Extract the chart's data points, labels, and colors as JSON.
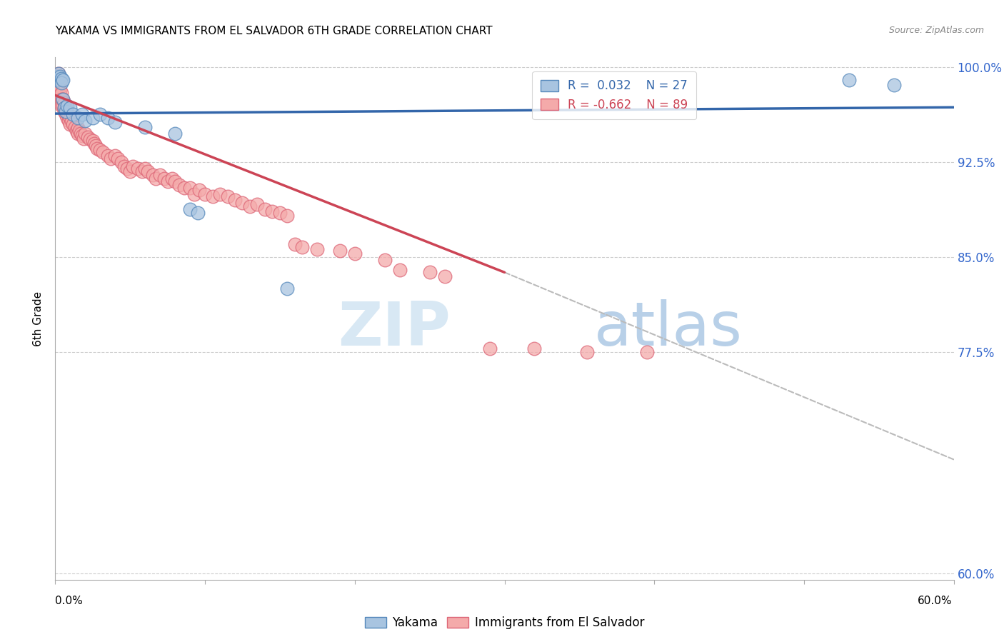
{
  "title": "YAKAMA VS IMMIGRANTS FROM EL SALVADOR 6TH GRADE CORRELATION CHART",
  "source": "Source: ZipAtlas.com",
  "ylabel": "6th Grade",
  "xmin": 0.0,
  "xmax": 0.6,
  "ymin": 0.595,
  "ymax": 1.008,
  "blue_color": "#A8C4E0",
  "blue_edge_color": "#5588BB",
  "pink_color": "#F4AAAA",
  "pink_edge_color": "#DD6677",
  "blue_line_color": "#3366AA",
  "pink_line_color": "#CC4455",
  "dashed_line_color": "#BBBBBB",
  "right_tick_color": "#3366CC",
  "ytick_positions": [
    0.6,
    0.775,
    0.85,
    0.925,
    1.0
  ],
  "ytick_labels": [
    "60.0%",
    "77.5%",
    "85.0%",
    "92.5%",
    "100.0%"
  ],
  "xtick_positions": [
    0.0,
    0.1,
    0.2,
    0.3,
    0.4,
    0.5,
    0.6
  ],
  "yakama_points": [
    [
      0.001,
      0.993
    ],
    [
      0.001,
      0.99
    ],
    [
      0.002,
      0.995
    ],
    [
      0.003,
      0.993
    ],
    [
      0.004,
      0.991
    ],
    [
      0.004,
      0.988
    ],
    [
      0.005,
      0.99
    ],
    [
      0.005,
      0.975
    ],
    [
      0.006,
      0.968
    ],
    [
      0.007,
      0.965
    ],
    [
      0.008,
      0.97
    ],
    [
      0.01,
      0.968
    ],
    [
      0.012,
      0.963
    ],
    [
      0.015,
      0.96
    ],
    [
      0.018,
      0.963
    ],
    [
      0.02,
      0.958
    ],
    [
      0.025,
      0.96
    ],
    [
      0.03,
      0.963
    ],
    [
      0.035,
      0.96
    ],
    [
      0.04,
      0.957
    ],
    [
      0.06,
      0.953
    ],
    [
      0.08,
      0.948
    ],
    [
      0.09,
      0.888
    ],
    [
      0.095,
      0.885
    ],
    [
      0.155,
      0.825
    ],
    [
      0.53,
      0.99
    ],
    [
      0.56,
      0.986
    ]
  ],
  "salvador_points": [
    [
      0.001,
      0.993
    ],
    [
      0.001,
      0.988
    ],
    [
      0.002,
      0.995
    ],
    [
      0.002,
      0.99
    ],
    [
      0.002,
      0.985
    ],
    [
      0.003,
      0.988
    ],
    [
      0.003,
      0.982
    ],
    [
      0.003,
      0.978
    ],
    [
      0.004,
      0.98
    ],
    [
      0.004,
      0.975
    ],
    [
      0.004,
      0.97
    ],
    [
      0.005,
      0.975
    ],
    [
      0.005,
      0.97
    ],
    [
      0.006,
      0.972
    ],
    [
      0.006,
      0.968
    ],
    [
      0.006,
      0.965
    ],
    [
      0.007,
      0.968
    ],
    [
      0.007,
      0.963
    ],
    [
      0.008,
      0.965
    ],
    [
      0.008,
      0.96
    ],
    [
      0.009,
      0.962
    ],
    [
      0.009,
      0.958
    ],
    [
      0.01,
      0.96
    ],
    [
      0.01,
      0.955
    ],
    [
      0.011,
      0.958
    ],
    [
      0.012,
      0.955
    ],
    [
      0.013,
      0.953
    ],
    [
      0.014,
      0.95
    ],
    [
      0.015,
      0.952
    ],
    [
      0.015,
      0.948
    ],
    [
      0.016,
      0.95
    ],
    [
      0.017,
      0.948
    ],
    [
      0.018,
      0.946
    ],
    [
      0.019,
      0.944
    ],
    [
      0.02,
      0.948
    ],
    [
      0.022,
      0.945
    ],
    [
      0.023,
      0.943
    ],
    [
      0.025,
      0.942
    ],
    [
      0.026,
      0.94
    ],
    [
      0.027,
      0.938
    ],
    [
      0.028,
      0.936
    ],
    [
      0.03,
      0.935
    ],
    [
      0.032,
      0.933
    ],
    [
      0.035,
      0.93
    ],
    [
      0.037,
      0.928
    ],
    [
      0.04,
      0.93
    ],
    [
      0.042,
      0.928
    ],
    [
      0.044,
      0.925
    ],
    [
      0.046,
      0.922
    ],
    [
      0.048,
      0.92
    ],
    [
      0.05,
      0.918
    ],
    [
      0.052,
      0.922
    ],
    [
      0.055,
      0.92
    ],
    [
      0.058,
      0.918
    ],
    [
      0.06,
      0.92
    ],
    [
      0.062,
      0.918
    ],
    [
      0.065,
      0.915
    ],
    [
      0.067,
      0.912
    ],
    [
      0.07,
      0.915
    ],
    [
      0.073,
      0.912
    ],
    [
      0.075,
      0.91
    ],
    [
      0.078,
      0.912
    ],
    [
      0.08,
      0.91
    ],
    [
      0.083,
      0.907
    ],
    [
      0.086,
      0.905
    ],
    [
      0.09,
      0.905
    ],
    [
      0.093,
      0.9
    ],
    [
      0.096,
      0.903
    ],
    [
      0.1,
      0.9
    ],
    [
      0.105,
      0.898
    ],
    [
      0.11,
      0.9
    ],
    [
      0.115,
      0.898
    ],
    [
      0.12,
      0.895
    ],
    [
      0.125,
      0.893
    ],
    [
      0.13,
      0.89
    ],
    [
      0.135,
      0.892
    ],
    [
      0.14,
      0.888
    ],
    [
      0.145,
      0.886
    ],
    [
      0.15,
      0.885
    ],
    [
      0.155,
      0.883
    ],
    [
      0.16,
      0.86
    ],
    [
      0.165,
      0.858
    ],
    [
      0.175,
      0.856
    ],
    [
      0.19,
      0.855
    ],
    [
      0.2,
      0.853
    ],
    [
      0.22,
      0.848
    ],
    [
      0.23,
      0.84
    ],
    [
      0.25,
      0.838
    ],
    [
      0.26,
      0.835
    ],
    [
      0.29,
      0.778
    ],
    [
      0.32,
      0.778
    ],
    [
      0.355,
      0.775
    ],
    [
      0.395,
      0.775
    ]
  ],
  "blue_trend_x": [
    0.0,
    0.6
  ],
  "blue_trend_y": [
    0.9635,
    0.9685
  ],
  "pink_trend_x": [
    0.0,
    0.3
  ],
  "pink_trend_y": [
    0.978,
    0.838
  ],
  "dashed_trend_x": [
    0.3,
    0.6
  ],
  "dashed_trend_y": [
    0.838,
    0.69
  ]
}
